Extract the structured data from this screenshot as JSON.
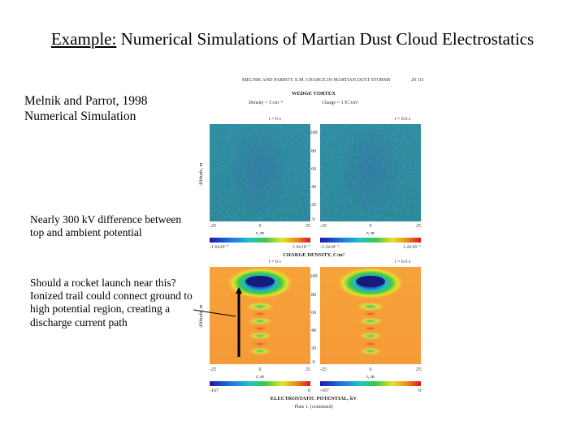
{
  "slide": {
    "title_lead": "Example:",
    "title_rest": " Numerical Simulations of Martian Dust Cloud Electrostatics"
  },
  "citation": {
    "line1": "Melnik and Parrot, 1998",
    "line2": "Numerical Simulation"
  },
  "notes": {
    "voltage": "Nearly 300 kV difference between top and ambient potential",
    "rocket": "Should a rocket launch near this? Ionized trail could connect ground to high potential region, creating a discharge current path"
  },
  "figure": {
    "header": "MELNIK AND PARROT: E.M. CHARGE IN MARTIAN DUST STORMS",
    "page_number": "20 111",
    "top_section_title": "WEDGE VORTEX",
    "density_label": "Density = 5 cm⁻³",
    "charge_label": "Charge = 1 fC/cm³",
    "time_left": "t = 6 s",
    "time_right": "t = 6.6 s",
    "altitude_label": "Altitude, m",
    "altitude_ticks": [
      "100",
      "80",
      "60",
      "40",
      "20",
      "0"
    ],
    "x_ticks": [
      "-25",
      "0",
      "25"
    ],
    "x_axis_label": "r, m",
    "colorbar_top_min_left": "-1.6x10⁻⁷",
    "colorbar_top_max_left": "1.6x10⁻⁷",
    "colorbar_top_min_right": "-1.2x10⁻⁷",
    "colorbar_top_max_right": "1.2x10⁻⁷",
    "top_colorbar_title": "CHARGE DENSITY, C/m³",
    "bottom_time_left": "t = 6 s",
    "bottom_time_right": "t = 6.6 s",
    "bottom_altitude_ticks": [
      "100",
      "80",
      "60",
      "40",
      "20",
      "0"
    ],
    "colorbar_bottom_min_left": "-167",
    "colorbar_bottom_max_left": "0",
    "colorbar_bottom_min_right": "-167",
    "colorbar_bottom_max_right": "0",
    "bottom_colorbar_title": "ELECTROSTATIC POTENTIAL, kV",
    "caption": "Plate 1. (continued)"
  }
}
